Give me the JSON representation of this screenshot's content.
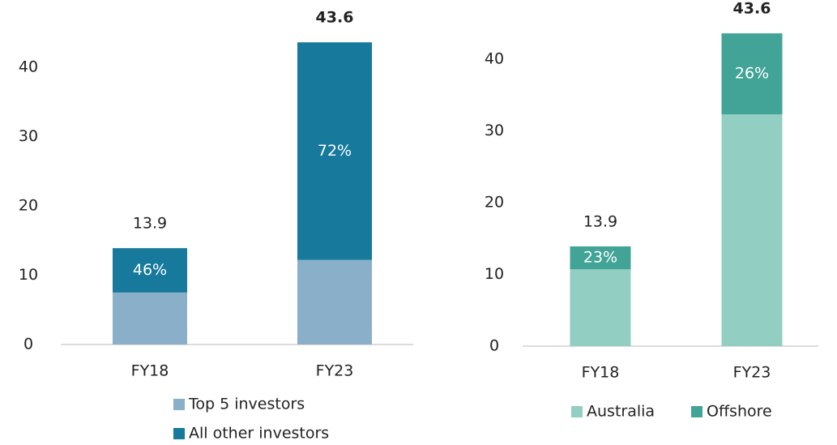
{
  "chart_data": [
    {
      "type": "stacked_bar",
      "categories": [
        "FY18",
        "FY23"
      ],
      "series": [
        {
          "name": "Top 5 investors",
          "color": "#8aafc9",
          "values": [
            7.5,
            12.2
          ]
        },
        {
          "name": "All other investors",
          "color": "#17799c",
          "values": [
            6.4,
            31.4
          ]
        }
      ],
      "segment_annotations": [
        "46%",
        "72%"
      ],
      "totals": [
        13.9,
        43.6
      ],
      "ylim": [
        0,
        43.6
      ],
      "yticks": [
        0,
        10,
        20,
        30,
        40
      ],
      "legend": "bottom-stacked"
    },
    {
      "type": "stacked_bar",
      "categories": [
        "FY18",
        "FY23"
      ],
      "series": [
        {
          "name": "Australia",
          "color": "#92cec2",
          "values": [
            10.7,
            32.3
          ]
        },
        {
          "name": "Offshore",
          "color": "#41a497",
          "values": [
            3.2,
            11.3
          ]
        }
      ],
      "segment_annotations": [
        "23%",
        "26%"
      ],
      "totals": [
        13.9,
        43.6
      ],
      "ylim": [
        0,
        43.6
      ],
      "yticks": [
        0,
        10,
        20,
        30,
        40
      ],
      "legend": "bottom-row"
    }
  ]
}
